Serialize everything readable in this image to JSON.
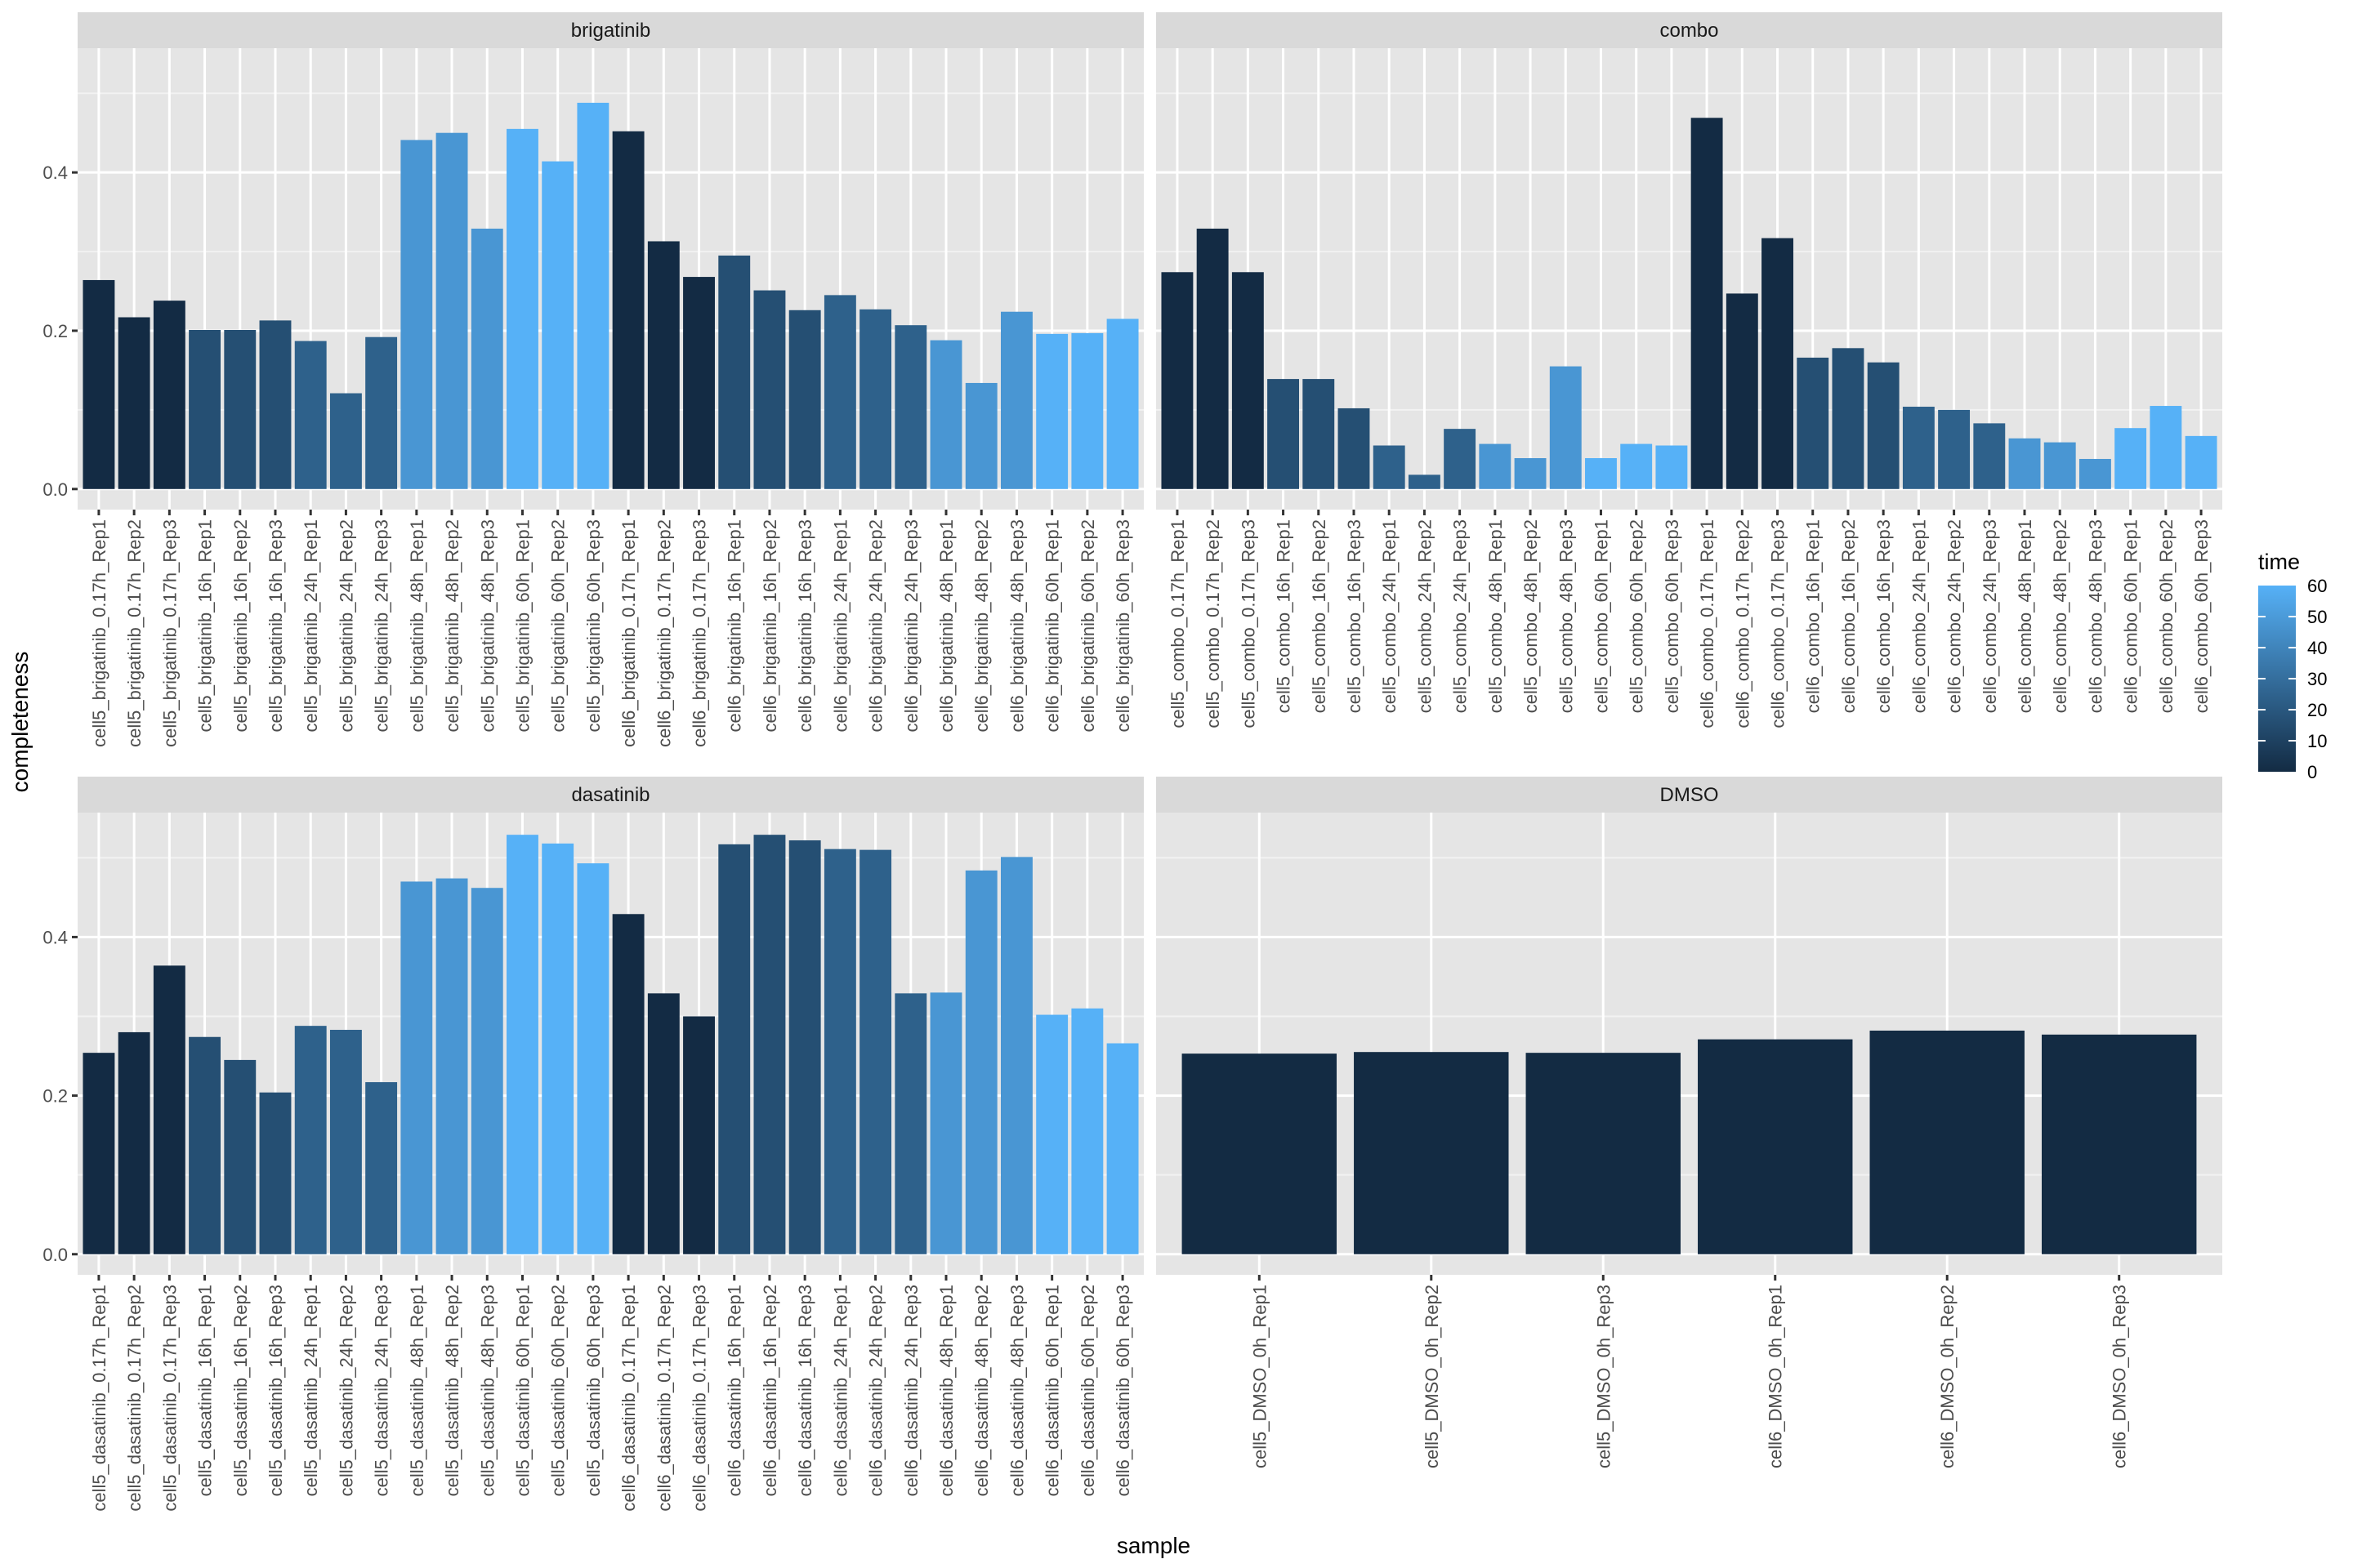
{
  "chart_data": {
    "type": "bar",
    "layout": "facet_wrap 2x2",
    "xlabel": "sample",
    "ylabel": "completeness",
    "ylim": [
      -0.026,
      0.557
    ],
    "yticks": [
      0.0,
      0.2,
      0.4
    ],
    "ytick_labels": [
      "0.0",
      "0.2",
      "0.4"
    ],
    "grid": true,
    "legend": {
      "title": "time",
      "placement": "right",
      "type": "continuous",
      "range": [
        0,
        60
      ],
      "ticks": [
        0,
        10,
        20,
        30,
        40,
        50,
        60
      ],
      "tick_labels": [
        "0",
        "10",
        "20",
        "30",
        "40",
        "50",
        "60"
      ],
      "low_color": "#132B43",
      "high_color": "#56B1F7"
    },
    "colors": {
      "panel_bg": "#E5E5E5",
      "strip_bg": "#D9D9D9",
      "grid": "#FFFFFF"
    },
    "panels": [
      {
        "title": "brigatinib",
        "categories": [
          "cell5_brigatinib_0.17h_Rep1",
          "cell5_brigatinib_0.17h_Rep2",
          "cell5_brigatinib_0.17h_Rep3",
          "cell5_brigatinib_16h_Rep1",
          "cell5_brigatinib_16h_Rep2",
          "cell5_brigatinib_16h_Rep3",
          "cell5_brigatinib_24h_Rep1",
          "cell5_brigatinib_24h_Rep2",
          "cell5_brigatinib_24h_Rep3",
          "cell5_brigatinib_48h_Rep1",
          "cell5_brigatinib_48h_Rep2",
          "cell5_brigatinib_48h_Rep3",
          "cell5_brigatinib_60h_Rep1",
          "cell5_brigatinib_60h_Rep2",
          "cell5_brigatinib_60h_Rep3",
          "cell6_brigatinib_0.17h_Rep1",
          "cell6_brigatinib_0.17h_Rep2",
          "cell6_brigatinib_0.17h_Rep3",
          "cell6_brigatinib_16h_Rep1",
          "cell6_brigatinib_16h_Rep2",
          "cell6_brigatinib_16h_Rep3",
          "cell6_brigatinib_24h_Rep1",
          "cell6_brigatinib_24h_Rep2",
          "cell6_brigatinib_24h_Rep3",
          "cell6_brigatinib_48h_Rep1",
          "cell6_brigatinib_48h_Rep2",
          "cell6_brigatinib_48h_Rep3",
          "cell6_brigatinib_60h_Rep1",
          "cell6_brigatinib_60h_Rep2",
          "cell6_brigatinib_60h_Rep3"
        ],
        "values": [
          0.264,
          0.217,
          0.238,
          0.201,
          0.201,
          0.213,
          0.187,
          0.121,
          0.192,
          0.441,
          0.45,
          0.329,
          0.455,
          0.414,
          0.488,
          0.452,
          0.313,
          0.268,
          0.295,
          0.251,
          0.226,
          0.245,
          0.227,
          0.207,
          0.188,
          0.134,
          0.224,
          0.196,
          0.197,
          0.215
        ],
        "time": [
          0.17,
          0.17,
          0.17,
          16,
          16,
          16,
          24,
          24,
          24,
          48,
          48,
          48,
          60,
          60,
          60,
          0.17,
          0.17,
          0.17,
          16,
          16,
          16,
          24,
          24,
          24,
          48,
          48,
          48,
          60,
          60,
          60
        ]
      },
      {
        "title": "combo",
        "categories": [
          "cell5_combo_0.17h_Rep1",
          "cell5_combo_0.17h_Rep2",
          "cell5_combo_0.17h_Rep3",
          "cell5_combo_16h_Rep1",
          "cell5_combo_16h_Rep2",
          "cell5_combo_16h_Rep3",
          "cell5_combo_24h_Rep1",
          "cell5_combo_24h_Rep2",
          "cell5_combo_24h_Rep3",
          "cell5_combo_48h_Rep1",
          "cell5_combo_48h_Rep2",
          "cell5_combo_48h_Rep3",
          "cell5_combo_60h_Rep1",
          "cell5_combo_60h_Rep2",
          "cell5_combo_60h_Rep3",
          "cell6_combo_0.17h_Rep1",
          "cell6_combo_0.17h_Rep2",
          "cell6_combo_0.17h_Rep3",
          "cell6_combo_16h_Rep1",
          "cell6_combo_16h_Rep2",
          "cell6_combo_16h_Rep3",
          "cell6_combo_24h_Rep1",
          "cell6_combo_24h_Rep2",
          "cell6_combo_24h_Rep3",
          "cell6_combo_48h_Rep1",
          "cell6_combo_48h_Rep2",
          "cell6_combo_48h_Rep3",
          "cell6_combo_60h_Rep1",
          "cell6_combo_60h_Rep2",
          "cell6_combo_60h_Rep3"
        ],
        "values": [
          0.274,
          0.329,
          0.274,
          0.139,
          0.139,
          0.102,
          0.055,
          0.018,
          0.076,
          0.057,
          0.039,
          0.155,
          0.039,
          0.057,
          0.055,
          0.469,
          0.247,
          0.317,
          0.166,
          0.178,
          0.16,
          0.104,
          0.1,
          0.083,
          0.064,
          0.059,
          0.038,
          0.077,
          0.105,
          0.067
        ],
        "time": [
          0.17,
          0.17,
          0.17,
          16,
          16,
          16,
          24,
          24,
          24,
          48,
          48,
          48,
          60,
          60,
          60,
          0.17,
          0.17,
          0.17,
          16,
          16,
          16,
          24,
          24,
          24,
          48,
          48,
          48,
          60,
          60,
          60
        ]
      },
      {
        "title": "dasatinib",
        "categories": [
          "cell5_dasatinib_0.17h_Rep1",
          "cell5_dasatinib_0.17h_Rep2",
          "cell5_dasatinib_0.17h_Rep3",
          "cell5_dasatinib_16h_Rep1",
          "cell5_dasatinib_16h_Rep2",
          "cell5_dasatinib_16h_Rep3",
          "cell5_dasatinib_24h_Rep1",
          "cell5_dasatinib_24h_Rep2",
          "cell5_dasatinib_24h_Rep3",
          "cell5_dasatinib_48h_Rep1",
          "cell5_dasatinib_48h_Rep2",
          "cell5_dasatinib_48h_Rep3",
          "cell5_dasatinib_60h_Rep1",
          "cell5_dasatinib_60h_Rep2",
          "cell5_dasatinib_60h_Rep3",
          "cell6_dasatinib_0.17h_Rep1",
          "cell6_dasatinib_0.17h_Rep2",
          "cell6_dasatinib_0.17h_Rep3",
          "cell6_dasatinib_16h_Rep1",
          "cell6_dasatinib_16h_Rep2",
          "cell6_dasatinib_16h_Rep3",
          "cell6_dasatinib_24h_Rep1",
          "cell6_dasatinib_24h_Rep2",
          "cell6_dasatinib_24h_Rep3",
          "cell6_dasatinib_48h_Rep1",
          "cell6_dasatinib_48h_Rep2",
          "cell6_dasatinib_48h_Rep3",
          "cell6_dasatinib_60h_Rep1",
          "cell6_dasatinib_60h_Rep2",
          "cell6_dasatinib_60h_Rep3"
        ],
        "values": [
          0.254,
          0.28,
          0.364,
          0.274,
          0.245,
          0.204,
          0.288,
          0.283,
          0.217,
          0.47,
          0.474,
          0.462,
          0.529,
          0.518,
          0.493,
          0.429,
          0.329,
          0.3,
          0.517,
          0.529,
          0.522,
          0.511,
          0.51,
          0.329,
          0.33,
          0.484,
          0.501,
          0.302,
          0.31,
          0.266
        ],
        "time": [
          0.17,
          0.17,
          0.17,
          16,
          16,
          16,
          24,
          24,
          24,
          48,
          48,
          48,
          60,
          60,
          60,
          0.17,
          0.17,
          0.17,
          16,
          16,
          16,
          24,
          24,
          24,
          48,
          48,
          48,
          60,
          60,
          60
        ]
      },
      {
        "title": "DMSO",
        "categories": [
          "cell5_DMSO_0h_Rep1",
          "cell5_DMSO_0h_Rep2",
          "cell5_DMSO_0h_Rep3",
          "cell6_DMSO_0h_Rep1",
          "cell6_DMSO_0h_Rep2",
          "cell6_DMSO_0h_Rep3"
        ],
        "values": [
          0.253,
          0.255,
          0.254,
          0.271,
          0.282,
          0.277
        ],
        "time": [
          0,
          0,
          0,
          0,
          0,
          0
        ]
      }
    ]
  }
}
